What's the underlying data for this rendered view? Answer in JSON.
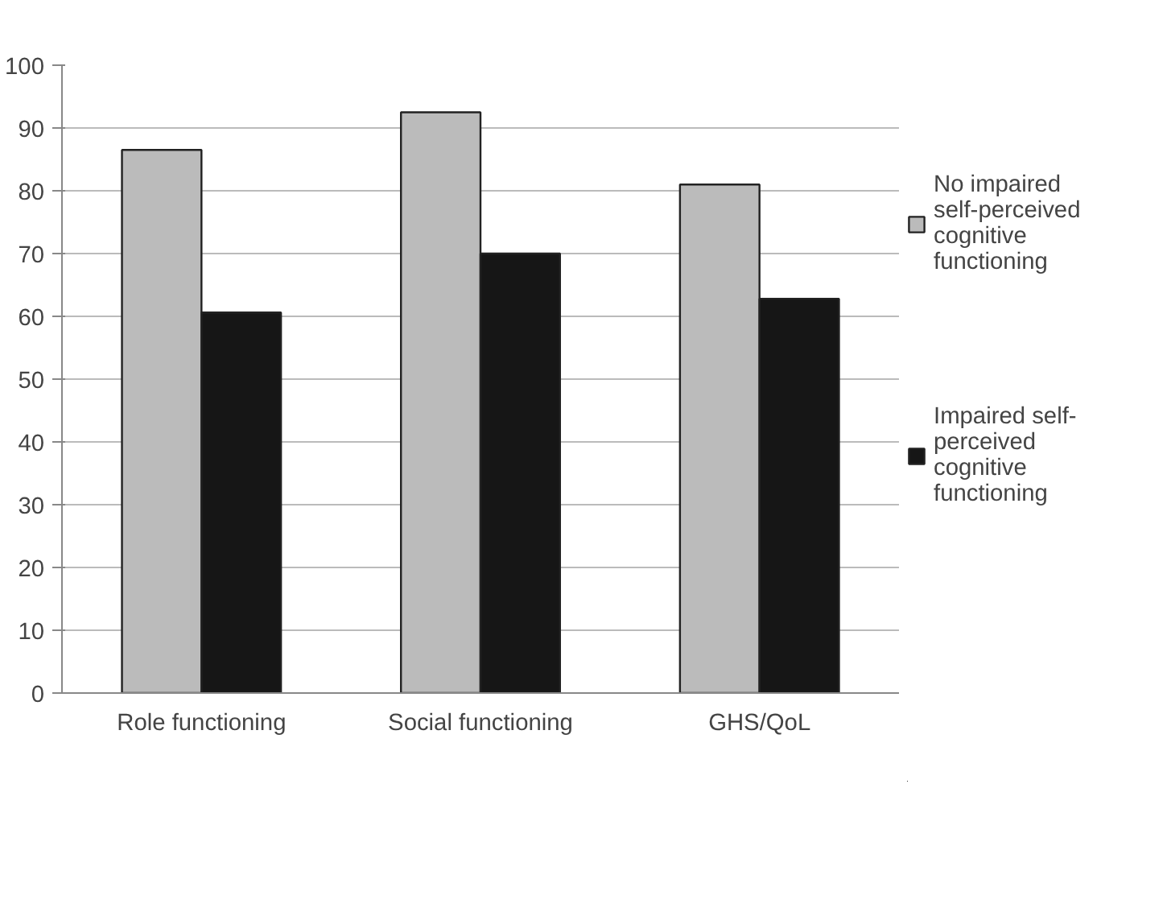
{
  "chart_data": {
    "type": "bar",
    "categories": [
      "Role functioning",
      "Social functioning",
      "GHS/QoL"
    ],
    "series": [
      {
        "name": "No impaired self-perceived cognitive functioning",
        "color": "#bbbbbb",
        "values": [
          86.5,
          92.5,
          81.0
        ]
      },
      {
        "name": "Impaired self-perceived cognitive functioning",
        "color": "#161616",
        "values": [
          60.6,
          70.0,
          62.8
        ]
      }
    ],
    "ylim": [
      0,
      100
    ],
    "yticks": [
      0,
      10,
      20,
      30,
      40,
      50,
      60,
      70,
      80,
      90,
      100
    ],
    "grid": "y",
    "legend": "right"
  }
}
